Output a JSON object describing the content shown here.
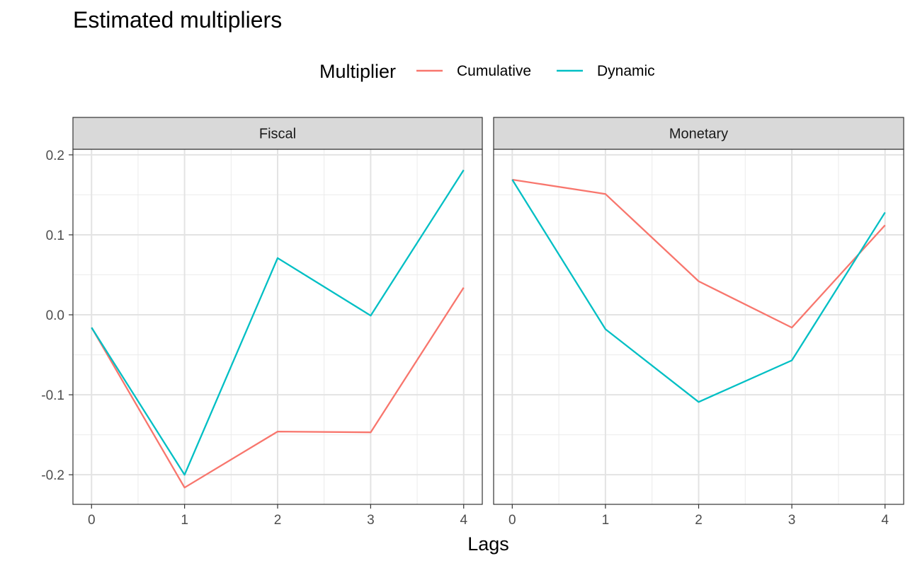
{
  "chart_data": {
    "type": "line",
    "title": "Estimated multipliers",
    "xlabel": "Lags",
    "ylabel": "",
    "x": [
      0,
      1,
      2,
      3,
      4
    ],
    "xlim": [
      -0.2,
      4.2
    ],
    "ylim": [
      -0.237,
      0.207
    ],
    "y_ticks": [
      -0.2,
      -0.1,
      0.0,
      0.1,
      0.2
    ],
    "y_tick_labels": [
      "-0.2",
      "-0.1",
      "0.0",
      "0.1",
      "0.2"
    ],
    "x_tick_labels": [
      "0",
      "1",
      "2",
      "3",
      "4"
    ],
    "grid": true,
    "legend": {
      "title": "Multiplier",
      "position": "top",
      "entries": [
        {
          "name": "Cumulative",
          "color": "#F8766D"
        },
        {
          "name": "Dynamic",
          "color": "#00BFC4"
        }
      ]
    },
    "panels": [
      {
        "name": "Fiscal",
        "series": [
          {
            "name": "Cumulative",
            "color": "#F8766D",
            "values": [
              -0.016,
              -0.216,
              -0.146,
              -0.147,
              0.034
            ]
          },
          {
            "name": "Dynamic",
            "color": "#00BFC4",
            "values": [
              -0.016,
              -0.2,
              0.071,
              -0.001,
              0.181
            ]
          }
        ]
      },
      {
        "name": "Monetary",
        "series": [
          {
            "name": "Cumulative",
            "color": "#F8766D",
            "values": [
              0.169,
              0.151,
              0.042,
              -0.016,
              0.112
            ]
          },
          {
            "name": "Dynamic",
            "color": "#00BFC4",
            "values": [
              0.169,
              -0.018,
              -0.109,
              -0.057,
              0.128
            ]
          }
        ]
      }
    ]
  }
}
